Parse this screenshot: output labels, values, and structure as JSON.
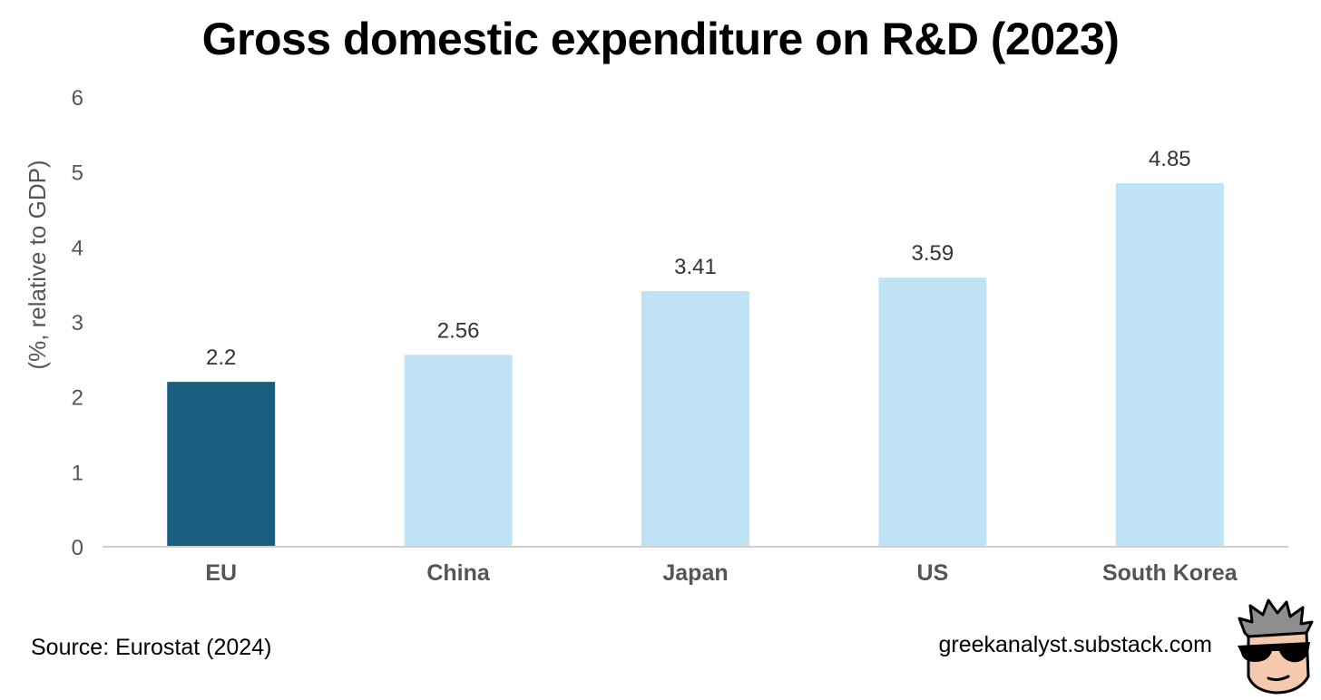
{
  "header": {
    "title": "Gross domestic expenditure on R&D (2023)"
  },
  "footer": {
    "source": "Source: Eurostat (2024)",
    "site": "greekanalyst.substack.com"
  },
  "colors": {
    "highlight": "#175e80",
    "normal": "#bfe3f5",
    "axis": "#d0d0d0",
    "tick_text": "#555555",
    "label_text": "#333333"
  },
  "chart_data": {
    "type": "bar",
    "title": "Gross domestic expenditure on R&D (2023)",
    "categories": [
      "EU",
      "China",
      "Japan",
      "US",
      "South Korea"
    ],
    "values": [
      2.2,
      2.56,
      3.41,
      3.59,
      4.85
    ],
    "value_labels": [
      "2.2",
      "2.56",
      "3.41",
      "3.59",
      "4.85"
    ],
    "highlight": [
      "EU"
    ],
    "xlabel": "",
    "ylabel": "(%, relative to GDP)",
    "ylim": [
      0,
      6
    ],
    "yticks": [
      "0",
      "1",
      "2",
      "3",
      "4",
      "5",
      "6"
    ],
    "grid": false,
    "legend": "none"
  }
}
